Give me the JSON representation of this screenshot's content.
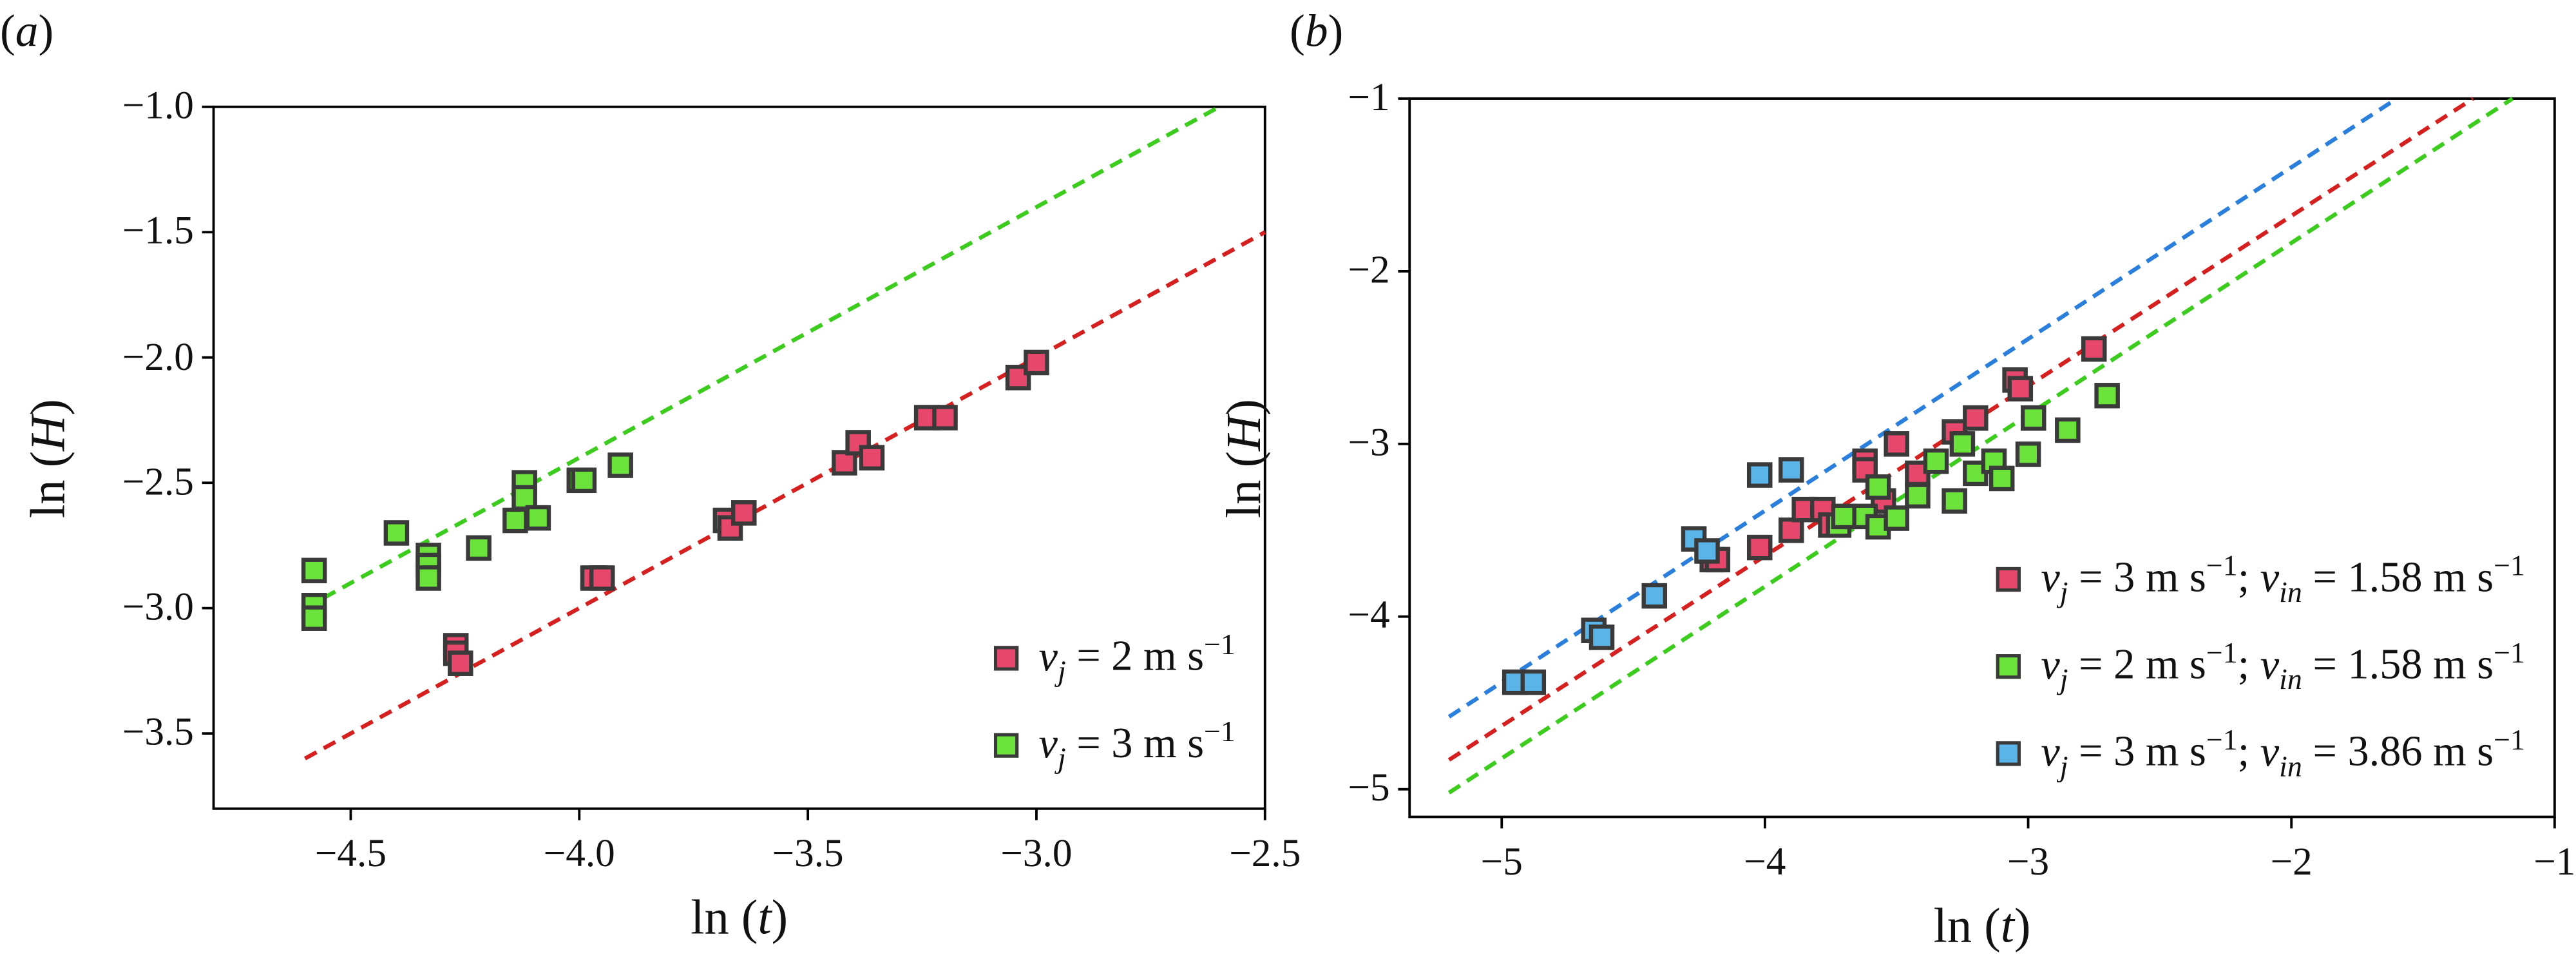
{
  "chart_data": [
    {
      "type": "scatter",
      "label": "(<i>a</i>)",
      "x_label": "ln (<i>t</i>)",
      "y_label": "ln (<i>H</i>)",
      "xlim": [
        -4.8,
        -2.5
      ],
      "ylim": [
        -3.8,
        -1.0
      ],
      "xticks": [
        {
          "value": -4.5,
          "label": "−4.5"
        },
        {
          "value": -4.0,
          "label": "−4.0"
        },
        {
          "value": -3.5,
          "label": "−3.5"
        },
        {
          "value": -3.0,
          "label": "−3.0"
        },
        {
          "value": -2.5,
          "label": "−2.5"
        }
      ],
      "yticks": [
        {
          "value": -3.5,
          "label": "−3.5"
        },
        {
          "value": -3.0,
          "label": "−3.0"
        },
        {
          "value": -2.5,
          "label": "−2.5"
        },
        {
          "value": -2.0,
          "label": "−2.0"
        },
        {
          "value": -1.5,
          "label": "−1.5"
        },
        {
          "value": -1.0,
          "label": "−1.0"
        }
      ],
      "legend": "lower right",
      "series": [
        {
          "name": "<i>v<sub>j</sub></i> = 2 m s<sup>−1</sup>",
          "color": "#e8476c",
          "edgecolor": "#3a3a3a",
          "x": [
            -4.27,
            -4.27,
            -4.26,
            -3.97,
            -3.95,
            -3.68,
            -3.67,
            -3.64,
            -3.42,
            -3.39,
            -3.36,
            -3.24,
            -3.2,
            -3.04,
            -3.0
          ],
          "y": [
            -3.15,
            -3.18,
            -3.22,
            -2.88,
            -2.88,
            -2.65,
            -2.68,
            -2.62,
            -2.42,
            -2.34,
            -2.4,
            -2.24,
            -2.24,
            -2.08,
            -2.02
          ],
          "fit": {
            "color": "#d62020",
            "x": [
              -4.6,
              -2.5
            ],
            "y": [
              -3.6,
              -1.5
            ]
          }
        },
        {
          "name": "<i>v<sub>j</sub></i> = 3 m s<sup>−1</sup>",
          "color": "#6be33a",
          "edgecolor": "#3a3a3a",
          "x": [
            -4.58,
            -4.58,
            -4.58,
            -4.4,
            -4.33,
            -4.33,
            -4.33,
            -4.22,
            -4.14,
            -4.12,
            -4.12,
            -4.09,
            -4.0,
            -3.99,
            -3.91
          ],
          "y": [
            -2.85,
            -2.99,
            -3.04,
            -2.7,
            -2.79,
            -2.83,
            -2.88,
            -2.76,
            -2.65,
            -2.5,
            -2.56,
            -2.64,
            -2.49,
            -2.49,
            -2.43
          ],
          "fit": {
            "color": "#3ccc1e",
            "x": [
              -4.6,
              -2.6
            ],
            "y": [
              -3.0,
              -1.0
            ]
          }
        }
      ]
    },
    {
      "type": "scatter",
      "label": "(<i>b</i>)",
      "x_label": "ln (<i>t</i>)",
      "y_label": "ln (<i>H</i>)",
      "xlim": [
        -5.35,
        -1
      ],
      "ylim": [
        -5.16,
        -1
      ],
      "xticks": [
        {
          "value": -5,
          "label": "−5"
        },
        {
          "value": -4,
          "label": "−4"
        },
        {
          "value": -3,
          "label": "−3"
        },
        {
          "value": -2,
          "label": "−2"
        },
        {
          "value": -1,
          "label": "−1"
        }
      ],
      "yticks": [
        {
          "value": -5,
          "label": "−5"
        },
        {
          "value": -4,
          "label": "−4"
        },
        {
          "value": -3,
          "label": "−3"
        },
        {
          "value": -2,
          "label": "−2"
        },
        {
          "value": -1,
          "label": "−1"
        }
      ],
      "legend": "lower right",
      "series": [
        {
          "name": "<i>v<sub>j</sub></i> = 3 m s<sup>−1</sup>; <i>v<sub>in</sub></i> = 1.58 m s<sup>−1</sup>",
          "color": "#e8476c",
          "edgecolor": "#3a3a3a",
          "x": [
            -4.2,
            -4.18,
            -4.02,
            -3.9,
            -3.85,
            -3.78,
            -3.75,
            -3.62,
            -3.62,
            -3.55,
            -3.5,
            -3.42,
            -3.28,
            -3.2,
            -3.05,
            -3.03,
            -2.75
          ],
          "y": [
            -3.67,
            -3.67,
            -3.6,
            -3.5,
            -3.38,
            -3.38,
            -3.47,
            -3.1,
            -3.15,
            -3.33,
            -3.0,
            -3.17,
            -2.93,
            -2.85,
            -2.63,
            -2.68,
            -2.45
          ],
          "fit": {
            "color": "#d62020",
            "x": [
              -5.2,
              -1.31
            ],
            "y": [
              -4.83,
              -1.0
            ]
          }
        },
        {
          "name": "<i>v<sub>j</sub></i> = 2 m s<sup>−1</sup>; <i>v<sub>in</sub></i> = 1.58 m s<sup>−1</sup>",
          "color": "#6be33a",
          "edgecolor": "#3a3a3a",
          "x": [
            -3.72,
            -3.7,
            -3.62,
            -3.57,
            -3.57,
            -3.5,
            -3.42,
            -3.35,
            -3.28,
            -3.25,
            -3.2,
            -3.13,
            -3.1,
            -3.0,
            -2.98,
            -2.85,
            -2.7
          ],
          "y": [
            -3.47,
            -3.42,
            -3.42,
            -3.48,
            -3.25,
            -3.43,
            -3.3,
            -3.1,
            -3.33,
            -3.0,
            -3.17,
            -3.1,
            -3.2,
            -3.06,
            -2.85,
            -2.92,
            -2.72
          ],
          "fit": {
            "color": "#3ccc1e",
            "x": [
              -5.2,
              -1.16
            ],
            "y": [
              -5.02,
              -1.0
            ]
          }
        },
        {
          "name": "<i>v<sub>j</sub></i> = 3 m s<sup>−1</sup>; <i>v<sub>in</sub></i> = 3.86 m s<sup>−1</sup>",
          "color": "#5ab4e8",
          "edgecolor": "#3a3a3a",
          "x": [
            -4.95,
            -4.88,
            -4.65,
            -4.62,
            -4.42,
            -4.27,
            -4.22,
            -4.02,
            -3.9
          ],
          "y": [
            -4.38,
            -4.38,
            -4.08,
            -4.12,
            -3.88,
            -3.55,
            -3.62,
            -3.18,
            -3.15
          ],
          "fit": {
            "color": "#2a7fdc",
            "x": [
              -5.2,
              -1.6
            ],
            "y": [
              -4.58,
              -1.0
            ]
          }
        }
      ]
    }
  ]
}
